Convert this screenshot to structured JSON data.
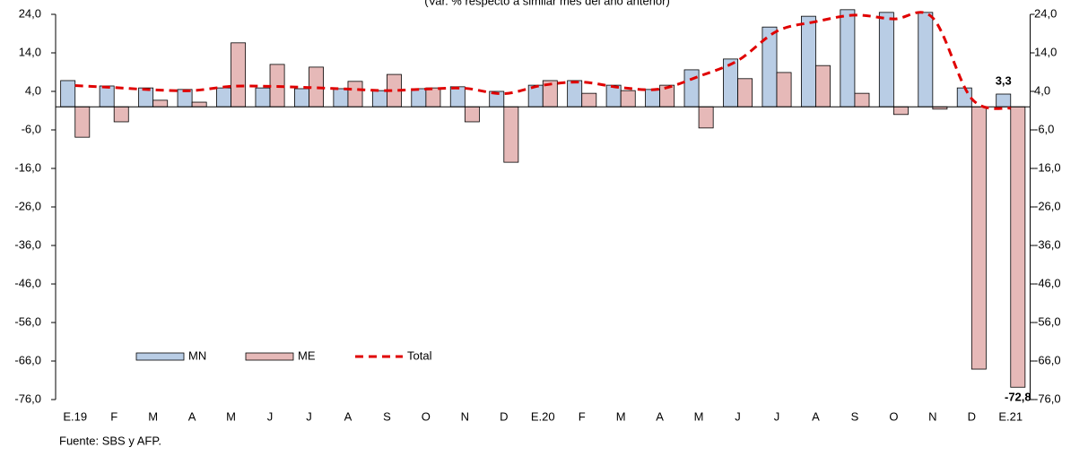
{
  "chart_data": {
    "type": "bar_line",
    "subtitle": "(Var. % respecto a similar mes del año anterior)",
    "categories": [
      "E.19",
      "F",
      "M",
      "A",
      "M",
      "J",
      "J",
      "A",
      "S",
      "O",
      "N",
      "D",
      "E.20",
      "F",
      "M",
      "A",
      "M",
      "J",
      "J",
      "A",
      "S",
      "O",
      "N",
      "D",
      "E.21"
    ],
    "series": [
      {
        "name": "MN",
        "type": "bar",
        "color": "#b9cde5",
        "values": [
          6.8,
          5.4,
          4.9,
          4.5,
          4.9,
          4.9,
          4.7,
          4.7,
          4.2,
          4.7,
          5.2,
          4.0,
          5.6,
          6.8,
          5.6,
          4.5,
          9.6,
          12.4,
          20.7,
          23.5,
          25.2,
          24.5,
          24.5,
          4.9,
          3.3
        ],
        "value_labels": [
          null,
          null,
          null,
          null,
          null,
          null,
          null,
          null,
          null,
          null,
          null,
          null,
          null,
          null,
          null,
          null,
          null,
          null,
          null,
          null,
          null,
          null,
          null,
          null,
          "3,3"
        ]
      },
      {
        "name": "ME",
        "type": "bar",
        "color": "#e6b9b8",
        "values": [
          -7.9,
          -3.9,
          1.7,
          1.2,
          16.6,
          11.0,
          10.3,
          6.6,
          8.4,
          4.9,
          -3.9,
          -14.4,
          6.8,
          3.5,
          4.2,
          5.6,
          -5.5,
          7.3,
          8.9,
          10.7,
          3.5,
          -2.0,
          -0.6,
          -68.1,
          -72.8
        ],
        "value_labels": [
          null,
          null,
          null,
          null,
          null,
          null,
          null,
          null,
          null,
          null,
          null,
          null,
          null,
          null,
          null,
          null,
          null,
          null,
          null,
          null,
          null,
          null,
          null,
          null,
          "-72,8"
        ]
      },
      {
        "name": "Total",
        "type": "line",
        "color": "#e00000",
        "values": [
          5.5,
          5.0,
          4.4,
          4.2,
          5.3,
          5.3,
          5.0,
          4.6,
          4.2,
          4.6,
          4.8,
          3.4,
          5.6,
          6.4,
          5.0,
          4.6,
          7.9,
          12.0,
          19.6,
          22.1,
          23.8,
          22.8,
          23.1,
          2.1,
          -0.4
        ]
      }
    ],
    "ylim": [
      -76,
      24
    ],
    "yticks": [
      {
        "value": 24,
        "label": "24,0"
      },
      {
        "value": 14,
        "label": "14,0"
      },
      {
        "value": 4,
        "label": "4,0"
      },
      {
        "value": -6,
        "label": "-6,0"
      },
      {
        "value": -16,
        "label": "-16,0"
      },
      {
        "value": -26,
        "label": "-26,0"
      },
      {
        "value": -36,
        "label": "-36,0"
      },
      {
        "value": -46,
        "label": "-46,0"
      },
      {
        "value": -56,
        "label": "-56,0"
      },
      {
        "value": -66,
        "label": "-66,0"
      },
      {
        "value": -76,
        "label": "-76,0"
      }
    ],
    "y2lim": [
      -76,
      24
    ],
    "y2ticks": [
      {
        "value": 24,
        "label": "24,0"
      },
      {
        "value": 14,
        "label": "14,0"
      },
      {
        "value": 4,
        "label": "4,0"
      },
      {
        "value": -6,
        "label": "-6,0"
      },
      {
        "value": -16,
        "label": "-16,0"
      },
      {
        "value": -26,
        "label": "-26,0"
      },
      {
        "value": -36,
        "label": "-36,0"
      },
      {
        "value": -46,
        "label": "-46,0"
      },
      {
        "value": -56,
        "label": "-56,0"
      },
      {
        "value": -66,
        "label": "-66,0"
      },
      {
        "value": -76,
        "label": "-76,0"
      }
    ],
    "grid": false,
    "legend": "bottom-left",
    "annotations": [
      "Fuente: SBS y AFP."
    ]
  }
}
